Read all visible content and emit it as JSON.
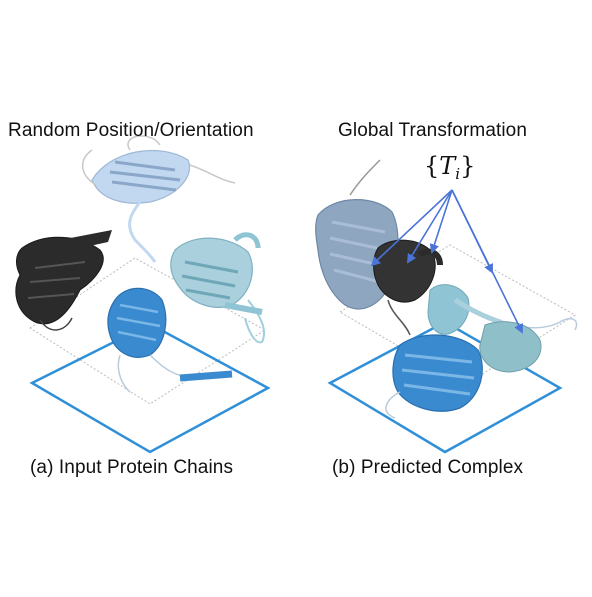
{
  "left_panel": {
    "top_label": "Random Position/Orientation",
    "bottom_label": "(a) Input Protein Chains"
  },
  "right_panel": {
    "top_label": "Global Transformation",
    "bottom_label": "(b) Predicted Complex",
    "transform_symbol": {
      "open_brace": "{",
      "variable": "T",
      "subscript": "i",
      "close_brace": "}"
    }
  },
  "colors": {
    "plane_outline": "#2f8fd8",
    "arrow": "#4a74d8",
    "chain_dark": "#2b2b2b",
    "chain_light_blue": "#c2d8f0",
    "chain_cyan": "#8fc4d4",
    "chain_blue": "#3a8ad0",
    "chain_grey_blue": "#8ea6c0"
  }
}
